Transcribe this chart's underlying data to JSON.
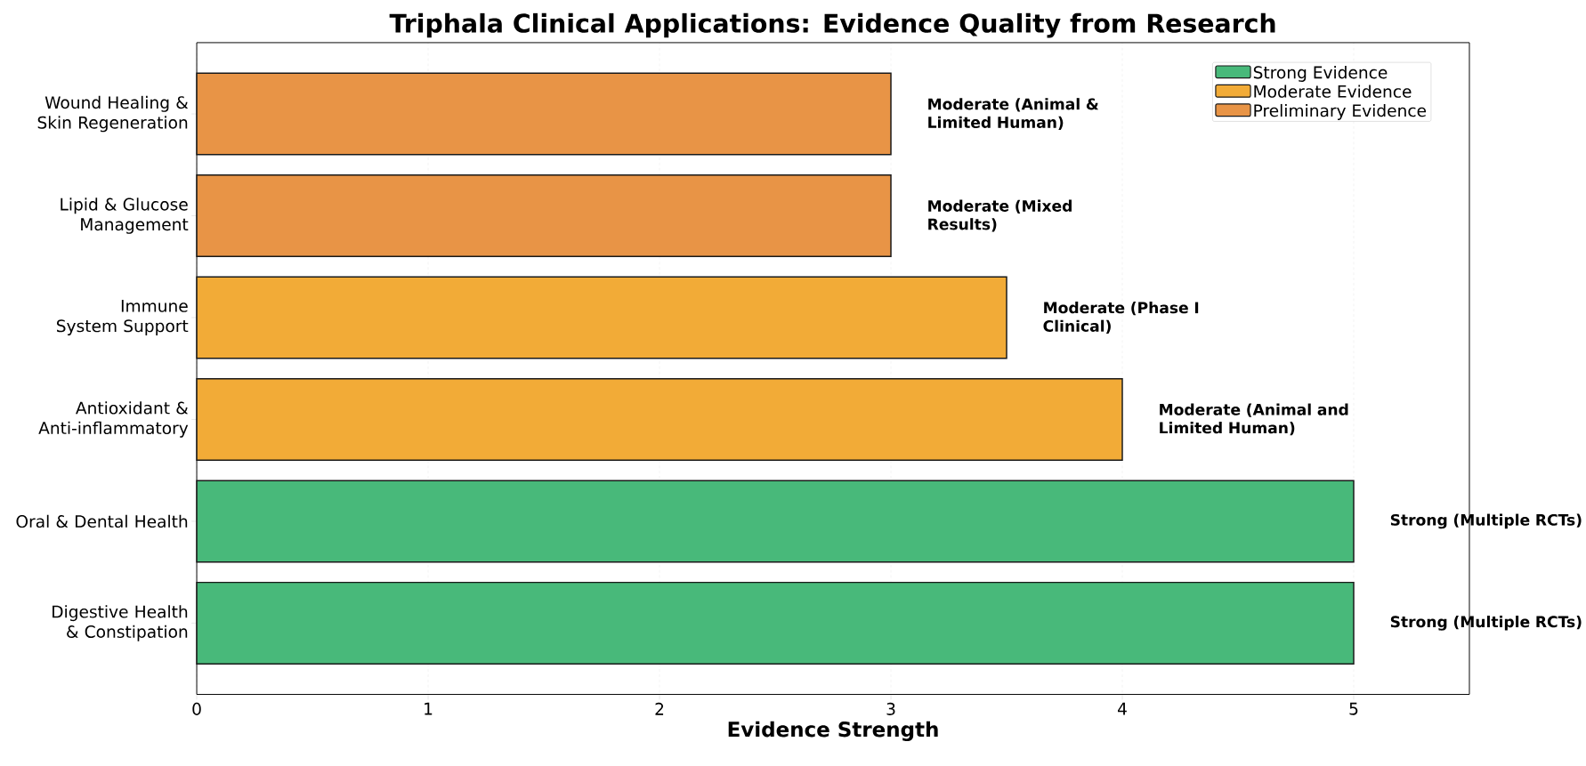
{
  "chart_data": {
    "type": "bar",
    "orientation": "horizontal",
    "title": "Triphala Clinical Applications: Evidence Quality from Research",
    "xlabel": "Evidence Strength",
    "categories": [
      "Wound Healing & Skin Regeneration",
      "Lipid & Glucose Management",
      "Immune System Support",
      "Antioxidant & Anti-inflammatory",
      "Oral & Dental Health",
      "Digestive Health & Constipation"
    ],
    "series": [
      {
        "name": "Strong Evidence",
        "color": "#48b97a",
        "values": [
          null,
          null,
          null,
          null,
          5,
          5
        ]
      },
      {
        "name": "Moderate Evidence",
        "color": "#f2ab37",
        "values": [
          null,
          null,
          3.5,
          4,
          null,
          null
        ]
      },
      {
        "name": "Preliminary Evidence",
        "color": "#e89446",
        "values": [
          3,
          3,
          null,
          null,
          null,
          null
        ]
      }
    ],
    "annotations": [
      {
        "text": "Moderate (Animal & Limited Human)",
        "x": 3,
        "y": "Wound Healing & Skin Regeneration"
      },
      {
        "text": "Moderate (Mixed Results)",
        "x": 3,
        "y": "Lipid & Glucose Management"
      },
      {
        "text": "Moderate (Phase I Clinical)",
        "x": 3.5,
        "y": "Immune System Support"
      },
      {
        "text": "Moderate (Animal and Limited Human)",
        "x": 4,
        "y": "Antioxidant & Anti-inflammatory"
      },
      {
        "text": "Strong (Multiple RCTs)",
        "x": 5,
        "y": "Oral & Dental Health"
      },
      {
        "text": "Strong (Multiple RCTs)",
        "x": 5,
        "y": "Digestive Health & Constipation"
      }
    ],
    "xlim": [
      0,
      5.5
    ],
    "xticks": [
      0,
      1,
      2,
      3,
      4,
      5
    ],
    "grid": "x",
    "legend": "top right"
  }
}
